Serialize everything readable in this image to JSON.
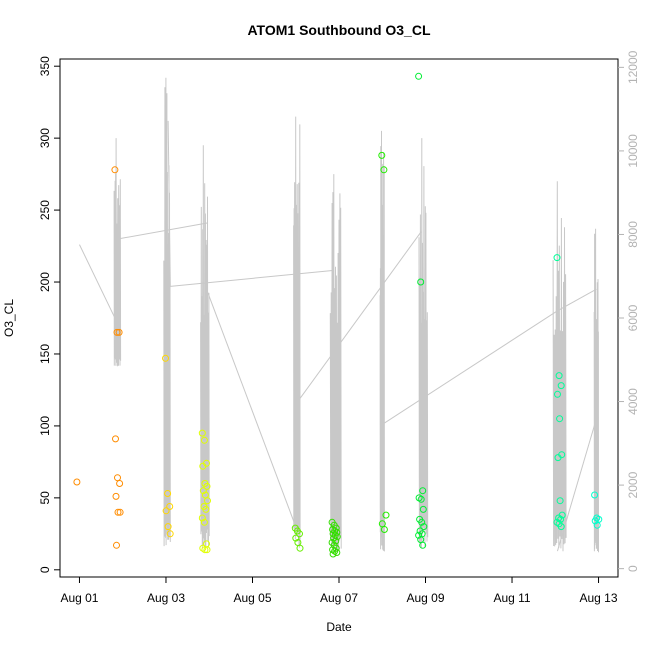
{
  "chart_data": {
    "type": "scatter",
    "title": "ATOM1 Southbound O3_CL",
    "xlabel": "Date",
    "ylabel": "O3_CL",
    "x_tick_labels": [
      "Aug 01",
      "Aug 03",
      "Aug 05",
      "Aug 07",
      "Aug 09",
      "Aug 11",
      "Aug 13"
    ],
    "x_tick_days": [
      1,
      3,
      5,
      7,
      9,
      11,
      13
    ],
    "xlim_days": [
      0.55,
      13.45
    ],
    "ylim": [
      -5,
      355
    ],
    "y_ticks": [
      0,
      50,
      100,
      150,
      200,
      250,
      300,
      350
    ],
    "y2lim": [
      -200,
      12200
    ],
    "y2_ticks": [
      0,
      2000,
      4000,
      6000,
      8000,
      10000,
      12000
    ],
    "grid": false,
    "line_color": "#c8c8c8",
    "secondary_axis_color": "#b3b3b3",
    "series": [
      {
        "color": "#ff8c00",
        "day": 1.0,
        "values": [
          61
        ]
      },
      {
        "color": "#ff8c00",
        "day": 1.88,
        "values": [
          278,
          165,
          165,
          91,
          64,
          60,
          51,
          40,
          40,
          17
        ]
      },
      {
        "color": "#ffd700",
        "day": 3.05,
        "values": [
          147,
          53,
          44,
          41,
          30,
          25
        ]
      },
      {
        "color": "#e0ff00",
        "day": 3.9,
        "values": [
          95,
          90,
          74,
          72,
          60,
          58,
          55,
          52,
          48,
          44,
          42,
          36,
          33,
          18,
          15,
          14,
          14
        ]
      },
      {
        "color": "#66ee00",
        "day": 6.05,
        "values": [
          29,
          27,
          25,
          22,
          19,
          15
        ]
      },
      {
        "color": "#33dd00",
        "day": 6.9,
        "values": [
          33,
          31,
          29,
          28,
          27,
          26,
          25,
          24,
          23,
          22,
          20,
          19,
          17,
          15,
          14,
          13,
          12,
          11
        ]
      },
      {
        "color": "#22ee00",
        "day": 8.05,
        "values": [
          288,
          278,
          38,
          32,
          28
        ]
      },
      {
        "color": "#00ee33",
        "day": 8.9,
        "values": [
          343,
          200,
          55,
          50,
          49,
          42,
          35,
          33,
          30,
          27,
          25,
          24,
          21,
          17
        ]
      },
      {
        "color": "#00ff99",
        "day": 12.1,
        "values": [
          217,
          135,
          128,
          122,
          105,
          80,
          78,
          48,
          38,
          36,
          35,
          33,
          32,
          30
        ]
      },
      {
        "color": "#00ffcc",
        "day": 12.97,
        "values": [
          52,
          36,
          35,
          34,
          31
        ]
      }
    ],
    "spike_segments": [
      {
        "day_start": 1.8,
        "day_end": 1.95,
        "value_min": 140,
        "value_max": 300
      },
      {
        "day_start": 2.95,
        "day_end": 3.1,
        "value_min": 15,
        "value_max": 342
      },
      {
        "day_start": 3.8,
        "day_end": 4.0,
        "value_min": 15,
        "value_max": 295
      },
      {
        "day_start": 5.95,
        "day_end": 6.1,
        "value_min": 15,
        "value_max": 315
      },
      {
        "day_start": 6.8,
        "day_end": 7.05,
        "value_min": 12,
        "value_max": 275
      },
      {
        "day_start": 7.95,
        "day_end": 8.05,
        "value_min": 12,
        "value_max": 305
      },
      {
        "day_start": 8.85,
        "day_end": 9.05,
        "value_min": 15,
        "value_max": 300
      },
      {
        "day_start": 11.95,
        "day_end": 12.25,
        "value_min": 12,
        "value_max": 270
      },
      {
        "day_start": 12.9,
        "day_end": 13.0,
        "value_min": 12,
        "value_max": 237
      }
    ],
    "connector_lines": [
      {
        "day": [
          1.0,
          1.9
        ],
        "values": [
          226,
          170
        ]
      },
      {
        "day": [
          1.9,
          3.95
        ],
        "values": [
          230,
          241
        ]
      },
      {
        "day": [
          3.05,
          3.1
        ],
        "values": [
          312,
          197
        ]
      },
      {
        "day": [
          3.1,
          6.85
        ],
        "values": [
          197,
          208
        ]
      },
      {
        "day": [
          3.9,
          6.0
        ],
        "values": [
          198,
          30
        ]
      },
      {
        "day": [
          6.0,
          8.9
        ],
        "values": [
          115,
          235
        ]
      },
      {
        "day": [
          8.05,
          12.05
        ],
        "values": [
          102,
          180
        ]
      },
      {
        "day": [
          12.05,
          12.95
        ],
        "values": [
          180,
          195
        ]
      },
      {
        "day": [
          12.05,
          12.95
        ],
        "values": [
          13,
          105
        ]
      }
    ]
  }
}
